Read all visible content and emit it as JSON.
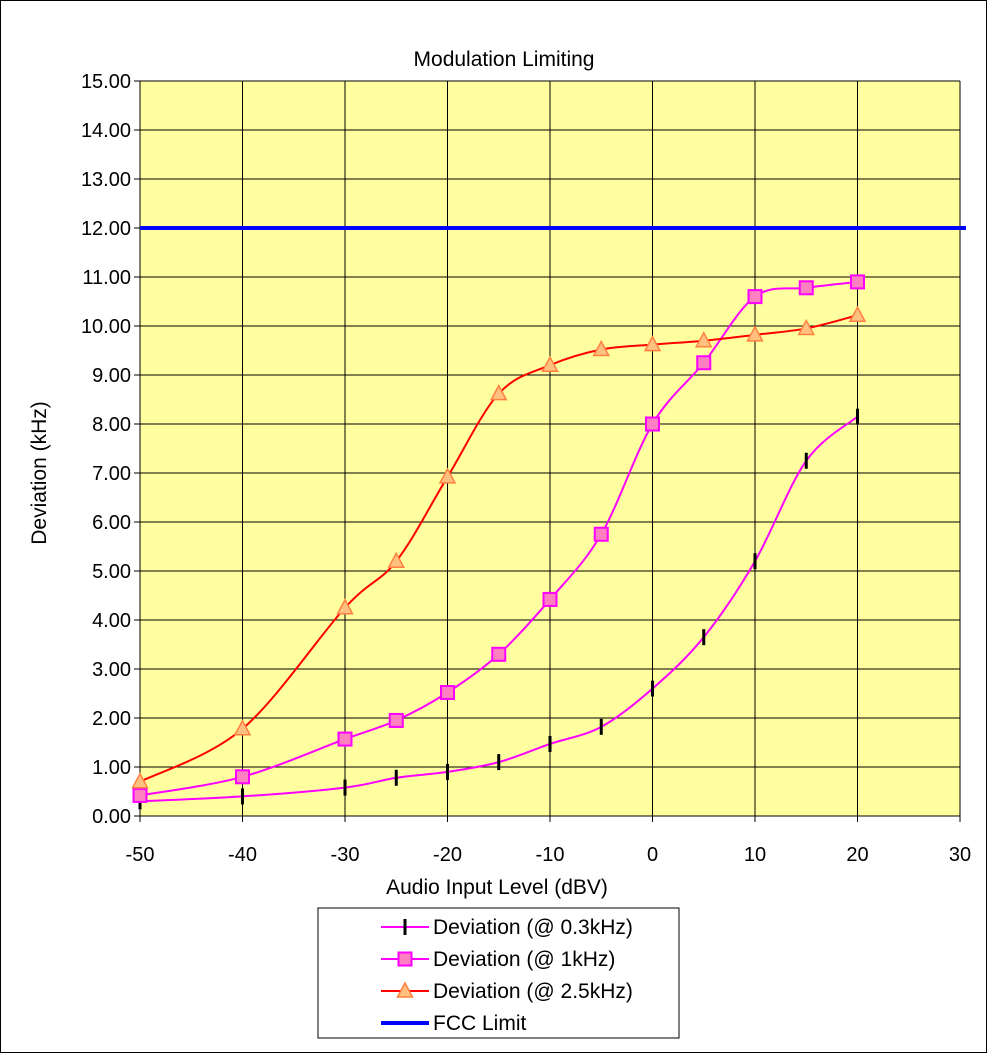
{
  "chart_data": {
    "type": "line",
    "title": "Modulation Limiting",
    "xlabel": "Audio Input Level (dBV)",
    "ylabel": "Deviation (kHz)",
    "xlim": [
      -50,
      30
    ],
    "ylim": [
      0,
      15
    ],
    "x_ticks": [
      "-50",
      "-40",
      "-30",
      "-20",
      "-10",
      "0",
      "10",
      "20",
      "30"
    ],
    "y_ticks": [
      "0.00",
      "1.00",
      "2.00",
      "3.00",
      "4.00",
      "5.00",
      "6.00",
      "7.00",
      "8.00",
      "9.00",
      "10.00",
      "11.00",
      "12.00",
      "13.00",
      "14.00",
      "15.00"
    ],
    "grid": true,
    "plot_background": "#ffffa0",
    "legend_position": "bottom",
    "series": [
      {
        "name": "Deviation (@ 0.3kHz)",
        "color": "#ff00ff",
        "marker": "dash",
        "x": [
          -50,
          -40,
          -30,
          -25,
          -20,
          -15,
          -10,
          -5,
          0,
          5,
          10,
          15,
          20
        ],
        "y": [
          0.3,
          0.4,
          0.58,
          0.78,
          0.9,
          1.1,
          1.47,
          1.82,
          2.6,
          3.65,
          5.2,
          7.25,
          8.15
        ]
      },
      {
        "name": "Deviation (@ 1kHz)",
        "color": "#ff00ff",
        "marker": "square",
        "marker_fill": "#ff80c0",
        "x": [
          -50,
          -40,
          -30,
          -25,
          -20,
          -15,
          -10,
          -5,
          0,
          5,
          10,
          15,
          20
        ],
        "y": [
          0.42,
          0.8,
          1.57,
          1.95,
          2.52,
          3.3,
          4.42,
          5.75,
          8.0,
          9.25,
          10.6,
          10.78,
          10.9
        ]
      },
      {
        "name": "Deviation (@ 2.5kHz)",
        "color": "#ff0000",
        "marker": "triangle",
        "marker_fill": "#ffc080",
        "x": [
          -50,
          -40,
          -30,
          -25,
          -20,
          -15,
          -10,
          -5,
          0,
          5,
          10,
          15,
          20
        ],
        "y": [
          0.7,
          1.78,
          4.25,
          5.2,
          6.92,
          8.62,
          9.2,
          9.52,
          9.62,
          9.7,
          9.82,
          9.95,
          10.22
        ]
      },
      {
        "name": "FCC Limit",
        "color": "#0000ff",
        "marker": "none",
        "x": [
          -50,
          30
        ],
        "y": [
          12,
          12
        ]
      }
    ]
  }
}
